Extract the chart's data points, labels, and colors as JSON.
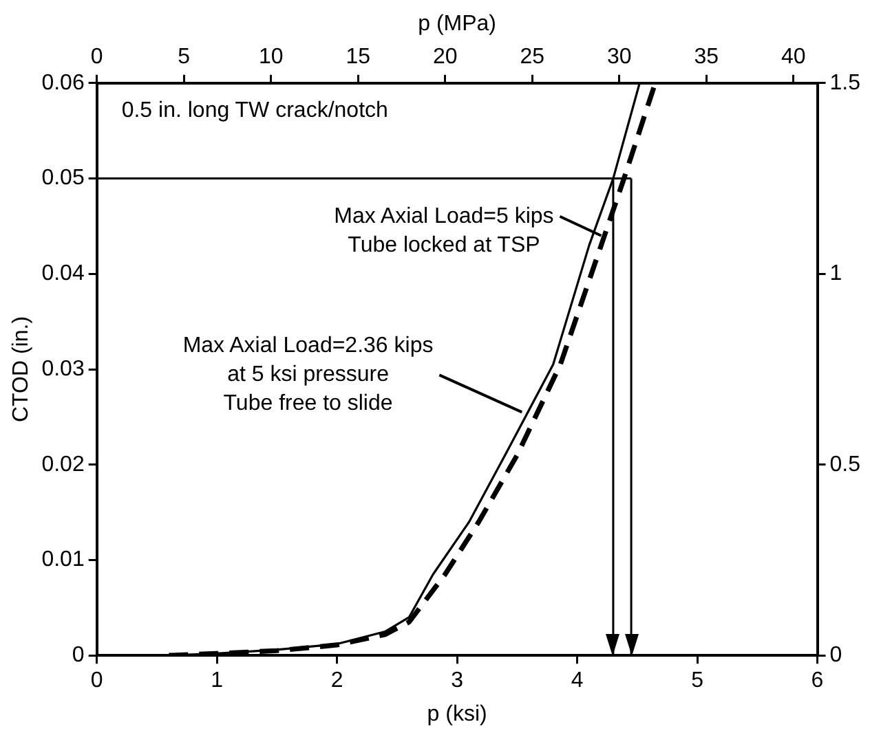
{
  "chart_data": {
    "type": "line",
    "xlabel": "p (ksi)",
    "ylabel": "CTOD (in.)",
    "x2label": "p (MPa)",
    "xlim": [
      0,
      6
    ],
    "xticks": [
      0,
      1,
      2,
      3,
      4,
      5,
      6
    ],
    "x2lim": [
      0,
      41.37
    ],
    "x2ticks": [
      0,
      5,
      10,
      15,
      20,
      25,
      30,
      35,
      40
    ],
    "ylim": [
      0,
      0.06
    ],
    "yticks": [
      0,
      0.01,
      0.02,
      0.03,
      0.04,
      0.05,
      0.06
    ],
    "y2lim": [
      0,
      1.5
    ],
    "y2ticks": [
      0,
      0.5,
      1,
      1.5
    ],
    "grid": false,
    "legend": false,
    "marker": "none",
    "series": [
      {
        "color": "#000000",
        "line_style": "solid",
        "x": [
          0.6,
          1,
          1.5,
          2,
          2.4,
          2.6,
          2.8,
          3.1,
          3.4,
          3.8,
          4.1,
          4.3,
          4.52
        ],
        "values": [
          0,
          0.0002,
          0.0006,
          0.0012,
          0.0025,
          0.004,
          0.0085,
          0.014,
          0.021,
          0.0305,
          0.043,
          0.05,
          0.06
        ]
      },
      {
        "color": "#000000",
        "line_style": "dashed",
        "x": [
          0.6,
          1,
          1.5,
          2,
          2.4,
          2.6,
          2.9,
          3.18,
          3.5,
          3.86,
          4.2,
          4.39,
          4.65
        ],
        "values": [
          0,
          0.0002,
          0.0005,
          0.0011,
          0.0022,
          0.0035,
          0.0085,
          0.014,
          0.021,
          0.0305,
          0.043,
          0.05,
          0.06
        ]
      }
    ],
    "ref_lines": [
      {
        "axis": "y",
        "value": 0.05
      },
      {
        "axis": "x",
        "value": 4.3
      },
      {
        "axis": "x",
        "value": 4.45
      }
    ],
    "annotations": [
      "0.5 in. long TW crack/notch",
      {
        "text": "Max Axial Load=5 kips\nTube locked at TSP",
        "x": 4.2,
        "y": 0.044
      },
      {
        "text": "Max Axial Load=2.36 kips\nat 5 ksi pressure\nTube free to slide",
        "x": 3.54,
        "y": 0.0255
      }
    ]
  }
}
